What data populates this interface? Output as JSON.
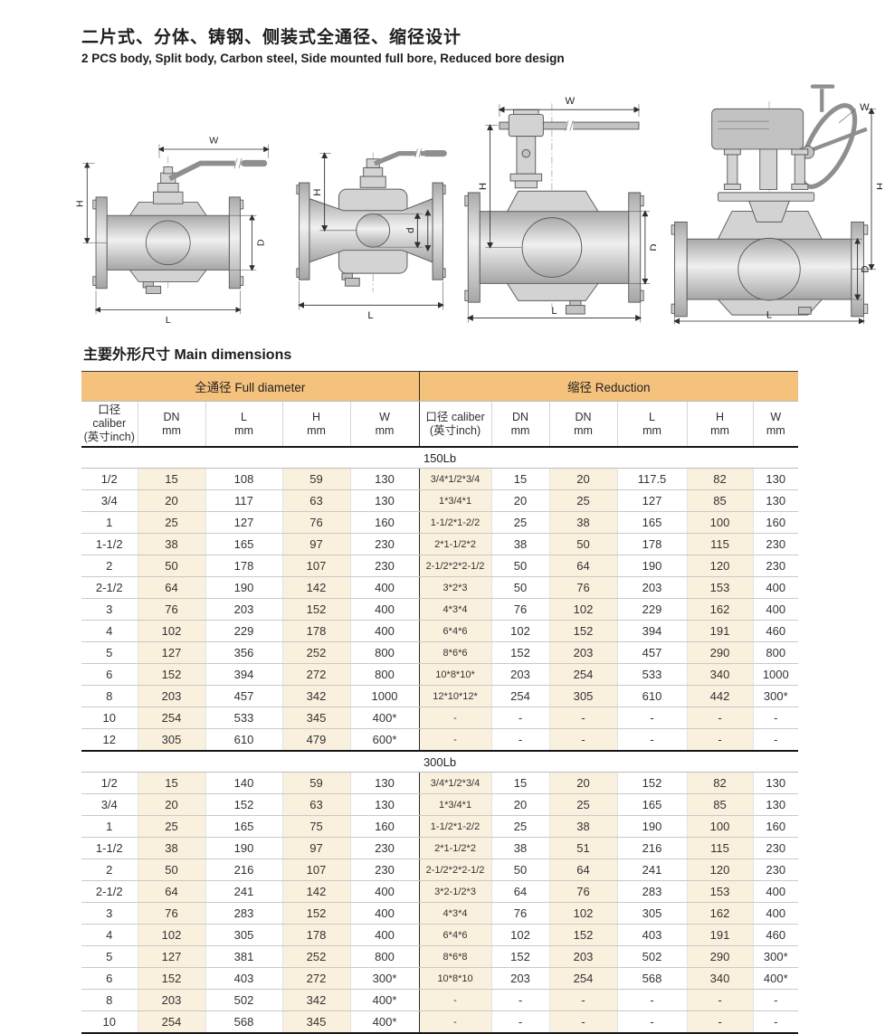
{
  "header": {
    "title_zh": "二片式、分体、铸钢、侧装式全通径、缩径设计",
    "title_en": "2 PCS body, Split body, Carbon steel, Side mounted full bore, Reduced bore design"
  },
  "section": {
    "title": "主要外形尺寸 Main dimensions"
  },
  "drawings": {
    "dim_labels": {
      "W": "W",
      "H": "H",
      "D": "D",
      "d": "d",
      "L": "L"
    }
  },
  "table": {
    "group_headers": [
      "全通径 Full diameter",
      "缩径 Reduction"
    ],
    "col_headers": [
      {
        "l1": "口径 caliber",
        "l2": "(英寸inch)"
      },
      {
        "l1": "DN",
        "l2": "mm"
      },
      {
        "l1": "L",
        "l2": "mm"
      },
      {
        "l1": "H",
        "l2": "mm"
      },
      {
        "l1": "W",
        "l2": "mm"
      },
      {
        "l1": "口径 caliber",
        "l2": "(英寸inch)"
      },
      {
        "l1": "DN",
        "l2": "mm"
      },
      {
        "l1": "DN",
        "l2": "mm"
      },
      {
        "l1": "L",
        "l2": "mm"
      },
      {
        "l1": "H",
        "l2": "mm"
      },
      {
        "l1": "W",
        "l2": "mm"
      }
    ],
    "sections": [
      {
        "label": "150Lb",
        "rows": [
          [
            "1/2",
            "15",
            "108",
            "59",
            "130",
            "3/4*1/2*3/4",
            "15",
            "20",
            "117.5",
            "82",
            "130"
          ],
          [
            "3/4",
            "20",
            "117",
            "63",
            "130",
            "1*3/4*1",
            "20",
            "25",
            "127",
            "85",
            "130"
          ],
          [
            "1",
            "25",
            "127",
            "76",
            "160",
            "1-1/2*1-2/2",
            "25",
            "38",
            "165",
            "100",
            "160"
          ],
          [
            "1-1/2",
            "38",
            "165",
            "97",
            "230",
            "2*1-1/2*2",
            "38",
            "50",
            "178",
            "115",
            "230"
          ],
          [
            "2",
            "50",
            "178",
            "107",
            "230",
            "2-1/2*2*2-1/2",
            "50",
            "64",
            "190",
            "120",
            "230"
          ],
          [
            "2-1/2",
            "64",
            "190",
            "142",
            "400",
            "3*2*3",
            "50",
            "76",
            "203",
            "153",
            "400"
          ],
          [
            "3",
            "76",
            "203",
            "152",
            "400",
            "4*3*4",
            "76",
            "102",
            "229",
            "162",
            "400"
          ],
          [
            "4",
            "102",
            "229",
            "178",
            "400",
            "6*4*6",
            "102",
            "152",
            "394",
            "191",
            "460"
          ],
          [
            "5",
            "127",
            "356",
            "252",
            "800",
            "8*6*6",
            "152",
            "203",
            "457",
            "290",
            "800"
          ],
          [
            "6",
            "152",
            "394",
            "272",
            "800",
            "10*8*10*",
            "203",
            "254",
            "533",
            "340",
            "1000"
          ],
          [
            "8",
            "203",
            "457",
            "342",
            "1000",
            "12*10*12*",
            "254",
            "305",
            "610",
            "442",
            "300*"
          ],
          [
            "10",
            "254",
            "533",
            "345",
            "400*",
            "-",
            "-",
            "-",
            "-",
            "-",
            "-"
          ],
          [
            "12",
            "305",
            "610",
            "479",
            "600*",
            "-",
            "-",
            "-",
            "-",
            "-",
            "-"
          ]
        ]
      },
      {
        "label": "300Lb",
        "rows": [
          [
            "1/2",
            "15",
            "140",
            "59",
            "130",
            "3/4*1/2*3/4",
            "15",
            "20",
            "152",
            "82",
            "130"
          ],
          [
            "3/4",
            "20",
            "152",
            "63",
            "130",
            "1*3/4*1",
            "20",
            "25",
            "165",
            "85",
            "130"
          ],
          [
            "1",
            "25",
            "165",
            "75",
            "160",
            "1-1/2*1-2/2",
            "25",
            "38",
            "190",
            "100",
            "160"
          ],
          [
            "1-1/2",
            "38",
            "190",
            "97",
            "230",
            "2*1-1/2*2",
            "38",
            "51",
            "216",
            "115",
            "230"
          ],
          [
            "2",
            "50",
            "216",
            "107",
            "230",
            "2-1/2*2*2-1/2",
            "50",
            "64",
            "241",
            "120",
            "230"
          ],
          [
            "2-1/2",
            "64",
            "241",
            "142",
            "400",
            "3*2-1/2*3",
            "64",
            "76",
            "283",
            "153",
            "400"
          ],
          [
            "3",
            "76",
            "283",
            "152",
            "400",
            "4*3*4",
            "76",
            "102",
            "305",
            "162",
            "400"
          ],
          [
            "4",
            "102",
            "305",
            "178",
            "400",
            "6*4*6",
            "102",
            "152",
            "403",
            "191",
            "460"
          ],
          [
            "5",
            "127",
            "381",
            "252",
            "800",
            "8*6*8",
            "152",
            "203",
            "502",
            "290",
            "300*"
          ],
          [
            "6",
            "152",
            "403",
            "272",
            "300*",
            "10*8*10",
            "203",
            "254",
            "568",
            "340",
            "400*"
          ],
          [
            "8",
            "203",
            "502",
            "342",
            "400*",
            "-",
            "-",
            "-",
            "-",
            "-",
            "-"
          ],
          [
            "10",
            "254",
            "568",
            "345",
            "400*",
            "-",
            "-",
            "-",
            "-",
            "-",
            "-"
          ]
        ]
      }
    ]
  },
  "colors": {
    "header_bg": "#f5c27d",
    "stripe_bg": "#faf0de",
    "line_dark": "#151515"
  }
}
